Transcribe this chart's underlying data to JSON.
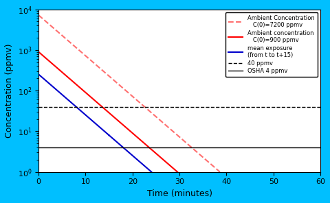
{
  "C0_high": 7200,
  "C0_low": 900,
  "k": 0.23,
  "osha_level": 4,
  "threshold_level": 40,
  "xlim": [
    0,
    60
  ],
  "ylim": [
    1,
    10000
  ],
  "xlabel": "Time (minutes)",
  "ylabel": "Concentration (ppmv)",
  "bg_color": "#00BFFF",
  "plot_bg": "white",
  "color_high": "#FF7070",
  "color_low": "#FF0000",
  "color_mean": "#0000CC",
  "color_osha": "black",
  "color_threshold": "black",
  "mean_windows": [
    0,
    15,
    30
  ],
  "mean_window_size": 15,
  "legend_label_high": "Ambient Concentration\n   C(0)=7200 ppmv",
  "legend_label_low": "Ambient concentration\n   C(0)=900 ppmv",
  "legend_label_mean": "mean exposure\n(from t to t+15)",
  "legend_label_40": "40 ppmv",
  "legend_label_osha": "OSHA 4 ppmv"
}
